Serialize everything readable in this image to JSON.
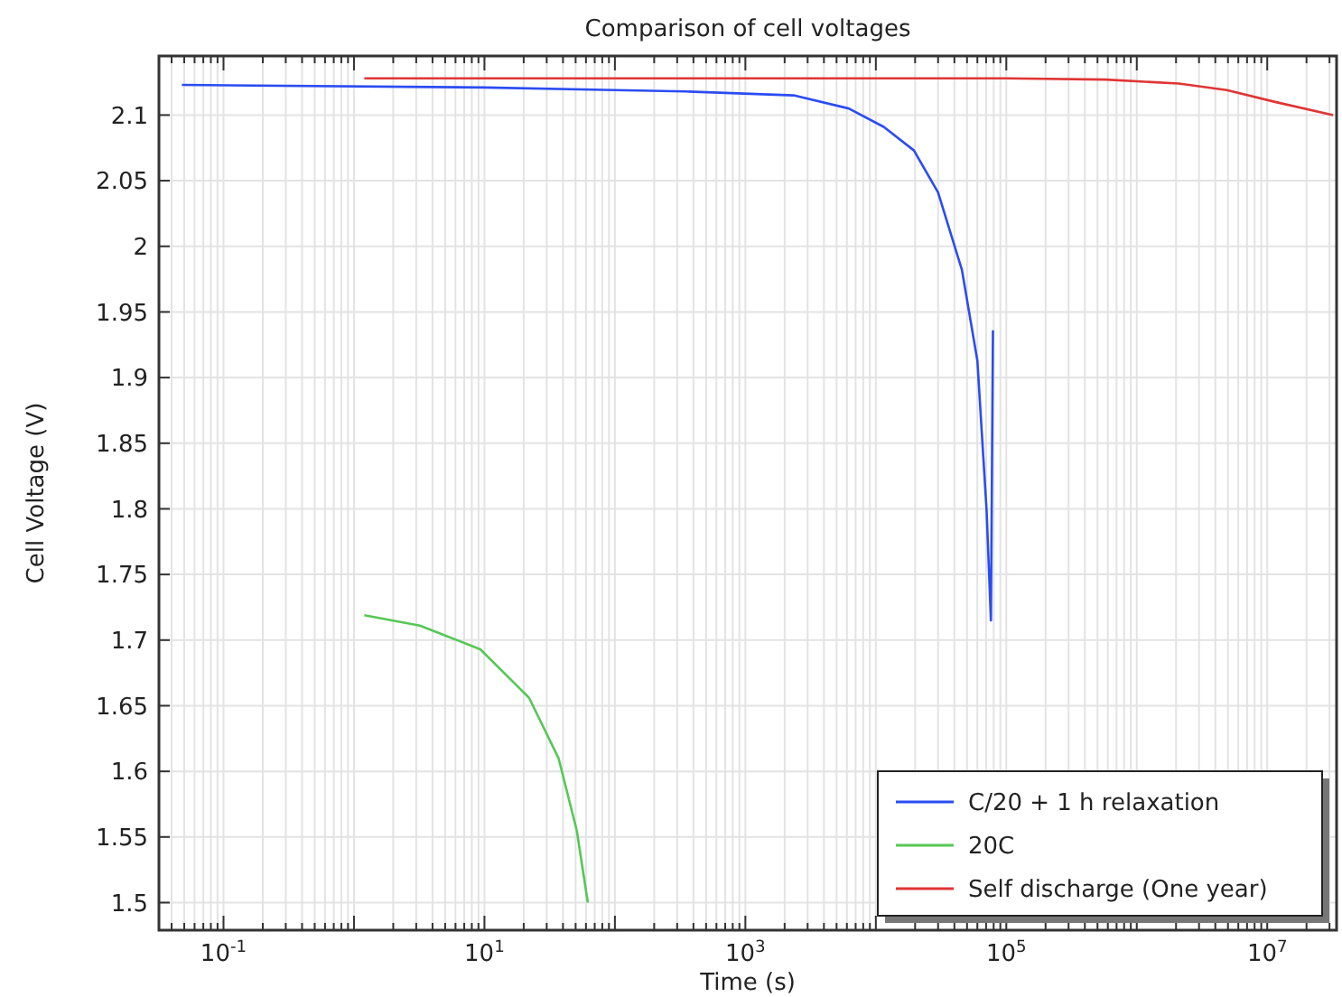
{
  "chart_data": {
    "type": "line",
    "title": "Comparison of cell voltages",
    "xlabel": "Time (s)",
    "ylabel": "Cell Voltage (V)",
    "log": "x",
    "xlim": [
      0.032,
      34000000
    ],
    "ylim": [
      1.479,
      2.145
    ],
    "xticks": [
      {
        "value": 0.1,
        "label": "10$^{-1}$"
      },
      {
        "value": 1,
        "label": null
      },
      {
        "value": 10,
        "label": "10$^{1}$"
      },
      {
        "value": 100,
        "label": null
      },
      {
        "value": 1000,
        "label": "10$^{3}$"
      },
      {
        "value": 10000,
        "label": null
      },
      {
        "value": 100000,
        "label": "10$^{5}$"
      },
      {
        "value": 1000000,
        "label": null
      },
      {
        "value": 10000000,
        "label": "10$^{7}$"
      }
    ],
    "yticks": [
      1.5,
      1.55,
      1.6,
      1.65,
      1.7,
      1.75,
      1.8,
      1.85,
      1.9,
      1.95,
      {
        "value": 2,
        "label": "2"
      },
      2.05,
      2.1
    ],
    "grid": true,
    "legend": "bottom right",
    "series": [
      {
        "name": "C/20 + 1 h relaxation",
        "color": "#2b4cf2",
        "x": [
          0.048,
          10,
          100,
          347,
          2340,
          6200,
          11500,
          19600,
          30000,
          45700,
          60000,
          70600,
          76200,
          79000
        ],
        "values": [
          2.123,
          2.121,
          2.119,
          2.118,
          2.115,
          2.105,
          2.091,
          2.073,
          2.041,
          1.982,
          1.913,
          1.799,
          1.715,
          1.936
        ]
      },
      {
        "name": "20C",
        "color": "#55c855",
        "x": [
          1.2,
          3.2,
          9.3,
          22,
          37,
          51,
          62
        ],
        "values": [
          1.719,
          1.711,
          1.693,
          1.656,
          1.61,
          1.555,
          1.5
        ]
      },
      {
        "name": "Self discharge (One year)",
        "color": "#e03535",
        "x": [
          1.2,
          1000,
          100000,
          580000,
          2100000,
          4900000,
          11500000,
          32000000
        ],
        "values": [
          2.128,
          2.128,
          2.128,
          2.127,
          2.124,
          2.119,
          2.11,
          2.1
        ]
      }
    ]
  }
}
